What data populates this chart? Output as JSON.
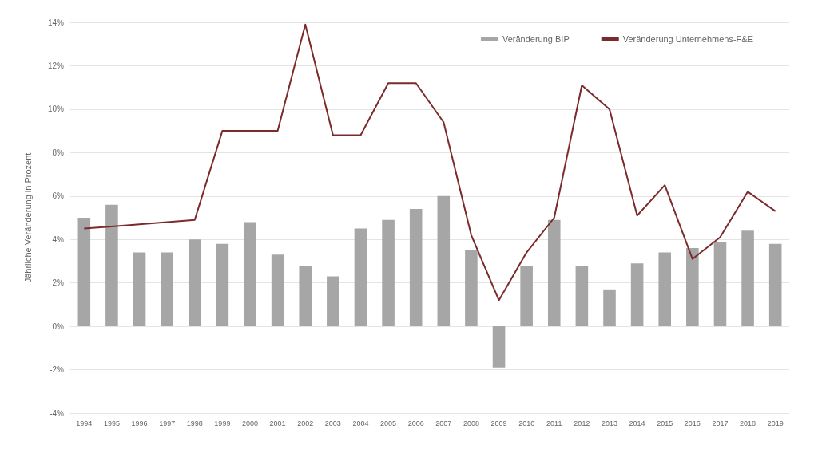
{
  "chart_data": {
    "type": "bar",
    "ylabel": "Jährliche Veränderung in Prozent",
    "categories": [
      "1994",
      "1995",
      "1996",
      "1997",
      "1998",
      "1999",
      "2000",
      "2001",
      "2002",
      "2003",
      "2004",
      "2005",
      "2006",
      "2007",
      "2008",
      "2009",
      "2010",
      "2011",
      "2012",
      "2013",
      "2014",
      "2015",
      "2016",
      "2017",
      "2018",
      "2019"
    ],
    "series": [
      {
        "name": "Veränderung BIP",
        "color": "#a6a6a6",
        "values": [
          5.0,
          5.6,
          3.4,
          3.4,
          4.0,
          3.8,
          4.8,
          3.3,
          2.8,
          2.3,
          4.5,
          4.9,
          5.4,
          6.0,
          3.5,
          -1.9,
          2.8,
          4.9,
          2.8,
          1.7,
          2.9,
          3.4,
          3.6,
          3.9,
          4.4,
          3.8
        ]
      },
      {
        "name": "Veränderung Unternehmens-F&E",
        "type": "line",
        "color": "#7b2b2b",
        "values": [
          4.5,
          4.6,
          4.7,
          4.8,
          4.9,
          9.0,
          9.0,
          9.0,
          13.9,
          8.8,
          8.8,
          11.2,
          11.2,
          9.4,
          4.2,
          1.2,
          3.4,
          5.0,
          11.1,
          10.0,
          5.1,
          6.5,
          3.1,
          4.1,
          6.2,
          5.3
        ]
      }
    ],
    "ylim": [
      -4,
      14
    ],
    "yticks": [
      {
        "value": -4,
        "label": "-4%"
      },
      {
        "value": -2,
        "label": "-2%"
      },
      {
        "value": 0,
        "label": "0%"
      },
      {
        "value": 2,
        "label": "2%"
      },
      {
        "value": 4,
        "label": "4%"
      },
      {
        "value": 6,
        "label": "6%"
      },
      {
        "value": 8,
        "label": "8%"
      },
      {
        "value": 10,
        "label": "10%"
      },
      {
        "value": 12,
        "label": "12%"
      },
      {
        "value": 14,
        "label": "14%"
      }
    ],
    "grid": "y",
    "legend": "top right",
    "marker": "none",
    "line_style": "solid"
  }
}
